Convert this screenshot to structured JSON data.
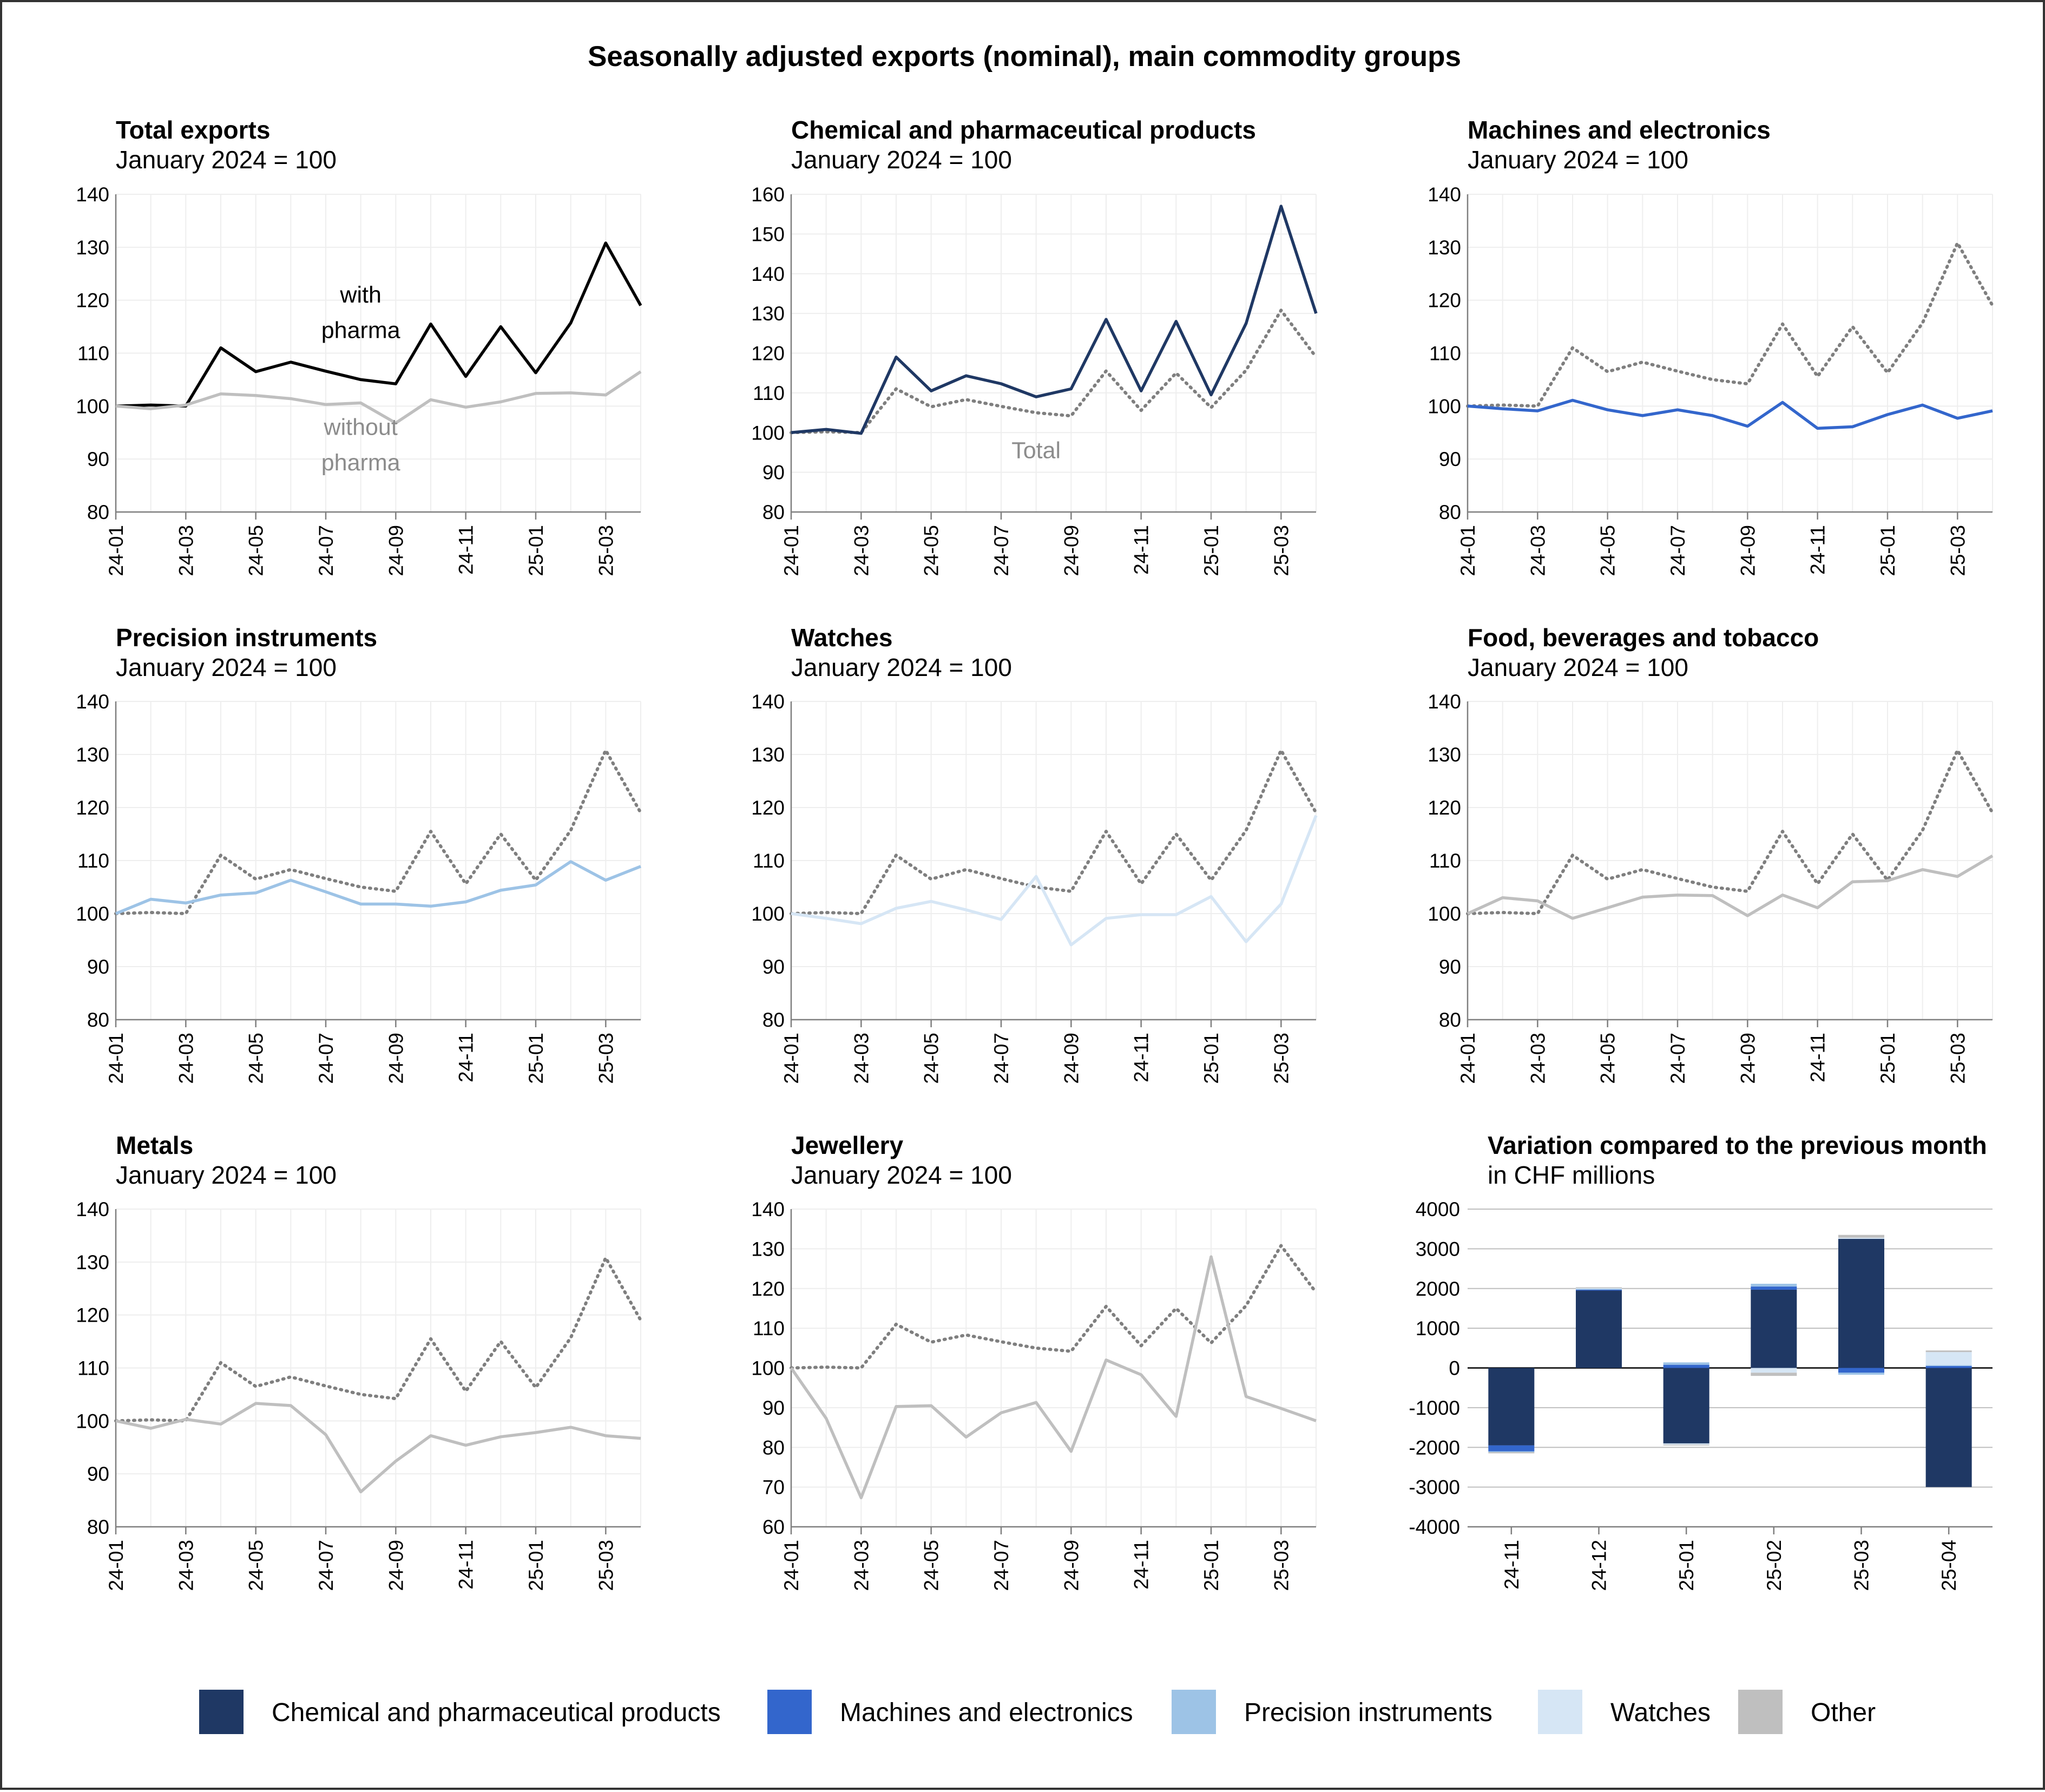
{
  "title": "Seasonally adjusted exports (nominal), main commodity groups",
  "colors": {
    "chem": "#1f3864",
    "mach": "#3366cc",
    "prec": "#9dc3e6",
    "watch": "#d6e6f5",
    "other": "#bfbfbf",
    "total_dotted": "#7f7f7f",
    "with_pharma": "#000000",
    "grid": "#eeeeee"
  },
  "legend": [
    {
      "label": "Chemical and pharmaceutical products",
      "color": "#1f3864"
    },
    {
      "label": "Machines and electronics",
      "color": "#3366cc"
    },
    {
      "label": "Precision instruments",
      "color": "#9dc3e6"
    },
    {
      "label": "Watches",
      "color": "#d6e6f5"
    },
    {
      "label": "Other",
      "color": "#bfbfbf"
    }
  ],
  "chart_data": [
    {
      "type": "line",
      "title": "Total exports",
      "subtitle": "January 2024 = 100",
      "x": [
        "24-01",
        "24-02",
        "24-03",
        "24-04",
        "24-05",
        "24-06",
        "24-07",
        "24-08",
        "24-09",
        "24-10",
        "24-11",
        "24-12",
        "25-01",
        "25-02",
        "25-03",
        "25-04"
      ],
      "xticks": [
        "24-01",
        "24-03",
        "24-05",
        "24-07",
        "24-09",
        "24-11",
        "25-01",
        "25-03"
      ],
      "ylim": [
        80,
        140
      ],
      "yticks": [
        80,
        90,
        100,
        110,
        120,
        130,
        140
      ],
      "series": [
        {
          "name": "with pharma",
          "color": "#000000",
          "style": "solid",
          "values": [
            100,
            100.2,
            100,
            111,
            106.5,
            108.3,
            106.6,
            105,
            104.2,
            115.5,
            105.6,
            115,
            106.3,
            115.7,
            130.8,
            119
          ]
        },
        {
          "name": "without pharma",
          "color": "#bfbfbf",
          "style": "solid",
          "values": [
            100,
            99.5,
            100.2,
            102.3,
            102,
            101.4,
            100.3,
            100.6,
            96.8,
            101.2,
            99.8,
            100.8,
            102.4,
            102.5,
            102.1,
            106.5
          ]
        }
      ],
      "annotations": [
        {
          "lines": [
            "with",
            "pharma"
          ],
          "color": "#000000",
          "x": "24-08",
          "y": [
            121,
            114.3
          ]
        },
        {
          "lines": [
            "without",
            "pharma"
          ],
          "color": "#8c8c8c",
          "x": "24-08",
          "y": [
            96,
            89.3
          ]
        }
      ]
    },
    {
      "type": "line",
      "title": "Chemical and pharmaceutical products",
      "subtitle": "January 2024 = 100",
      "x": [
        "24-01",
        "24-02",
        "24-03",
        "24-04",
        "24-05",
        "24-06",
        "24-07",
        "24-08",
        "24-09",
        "24-10",
        "24-11",
        "24-12",
        "25-01",
        "25-02",
        "25-03",
        "25-04"
      ],
      "xticks": [
        "24-01",
        "24-03",
        "24-05",
        "24-07",
        "24-09",
        "24-11",
        "25-01",
        "25-03"
      ],
      "ylim": [
        80,
        160
      ],
      "yticks": [
        80,
        90,
        100,
        110,
        120,
        130,
        140,
        150,
        160
      ],
      "series": [
        {
          "name": "Total",
          "color": "#7f7f7f",
          "style": "dotted",
          "values": [
            100,
            100.2,
            100,
            111,
            106.5,
            108.3,
            106.6,
            105,
            104.2,
            115.5,
            105.6,
            115,
            106.3,
            115.7,
            130.8,
            119
          ]
        },
        {
          "name": "Chemical and pharmaceutical products",
          "color": "#1f3864",
          "style": "solid",
          "values": [
            100,
            100.8,
            99.8,
            119,
            110.5,
            114.3,
            112.3,
            109,
            111,
            128.5,
            110.5,
            128,
            109.5,
            127.5,
            157,
            130
          ]
        }
      ],
      "annotations": [
        {
          "lines": [
            "Total"
          ],
          "color": "#8c8c8c",
          "x": "24-08",
          "y": [
            95.5
          ]
        }
      ]
    },
    {
      "type": "line",
      "title": "Machines and electronics",
      "subtitle": "January 2024 = 100",
      "x": [
        "24-01",
        "24-02",
        "24-03",
        "24-04",
        "24-05",
        "24-06",
        "24-07",
        "24-08",
        "24-09",
        "24-10",
        "24-11",
        "24-12",
        "25-01",
        "25-02",
        "25-03",
        "25-04"
      ],
      "xticks": [
        "24-01",
        "24-03",
        "24-05",
        "24-07",
        "24-09",
        "24-11",
        "25-01",
        "25-03"
      ],
      "ylim": [
        80,
        140
      ],
      "yticks": [
        80,
        90,
        100,
        110,
        120,
        130,
        140
      ],
      "series": [
        {
          "name": "Total",
          "color": "#7f7f7f",
          "style": "dotted",
          "values": [
            100,
            100.2,
            100,
            111,
            106.5,
            108.3,
            106.6,
            105,
            104.2,
            115.5,
            105.6,
            115,
            106.3,
            115.7,
            130.8,
            119
          ]
        },
        {
          "name": "Machines and electronics",
          "color": "#3366cc",
          "style": "solid",
          "values": [
            100,
            99.5,
            99.1,
            101.1,
            99.3,
            98.2,
            99.3,
            98.2,
            96.2,
            100.7,
            95.8,
            96.1,
            98.4,
            100.2,
            97.7,
            99.1
          ]
        }
      ]
    },
    {
      "type": "line",
      "title": "Precision instruments",
      "subtitle": "January 2024 = 100",
      "x": [
        "24-01",
        "24-02",
        "24-03",
        "24-04",
        "24-05",
        "24-06",
        "24-07",
        "24-08",
        "24-09",
        "24-10",
        "24-11",
        "24-12",
        "25-01",
        "25-02",
        "25-03",
        "25-04"
      ],
      "xticks": [
        "24-01",
        "24-03",
        "24-05",
        "24-07",
        "24-09",
        "24-11",
        "25-01",
        "25-03"
      ],
      "ylim": [
        80,
        140
      ],
      "yticks": [
        80,
        90,
        100,
        110,
        120,
        130,
        140
      ],
      "series": [
        {
          "name": "Total",
          "color": "#7f7f7f",
          "style": "dotted",
          "values": [
            100,
            100.2,
            100,
            111,
            106.5,
            108.3,
            106.6,
            105,
            104.2,
            115.5,
            105.6,
            115,
            106.3,
            115.7,
            130.8,
            119
          ]
        },
        {
          "name": "Precision instruments",
          "color": "#9dc3e6",
          "style": "solid",
          "values": [
            100,
            102.7,
            102,
            103.5,
            103.9,
            106.3,
            104.1,
            101.8,
            101.8,
            101.4,
            102.2,
            104.4,
            105.4,
            109.8,
            106.3,
            108.9
          ]
        }
      ]
    },
    {
      "type": "line",
      "title": "Watches",
      "subtitle": "January 2024 = 100",
      "x": [
        "24-01",
        "24-02",
        "24-03",
        "24-04",
        "24-05",
        "24-06",
        "24-07",
        "24-08",
        "24-09",
        "24-10",
        "24-11",
        "24-12",
        "25-01",
        "25-02",
        "25-03",
        "25-04"
      ],
      "xticks": [
        "24-01",
        "24-03",
        "24-05",
        "24-07",
        "24-09",
        "24-11",
        "25-01",
        "25-03"
      ],
      "ylim": [
        80,
        140
      ],
      "yticks": [
        80,
        90,
        100,
        110,
        120,
        130,
        140
      ],
      "series": [
        {
          "name": "Total",
          "color": "#7f7f7f",
          "style": "dotted",
          "values": [
            100,
            100.2,
            100,
            111,
            106.5,
            108.3,
            106.6,
            105,
            104.2,
            115.5,
            105.6,
            115,
            106.3,
            115.7,
            130.8,
            119
          ]
        },
        {
          "name": "Watches",
          "color": "#d6e6f5",
          "style": "solid",
          "values": [
            100,
            99.1,
            98.1,
            101,
            102.3,
            100.7,
            98.9,
            107,
            94.1,
            99.1,
            99.8,
            99.8,
            103.2,
            94.7,
            101.8,
            118.5
          ]
        }
      ]
    },
    {
      "type": "line",
      "title": "Food, beverages and tobacco",
      "subtitle": "January 2024 = 100",
      "x": [
        "24-01",
        "24-02",
        "24-03",
        "24-04",
        "24-05",
        "24-06",
        "24-07",
        "24-08",
        "24-09",
        "24-10",
        "24-11",
        "24-12",
        "25-01",
        "25-02",
        "25-03",
        "25-04"
      ],
      "xticks": [
        "24-01",
        "24-03",
        "24-05",
        "24-07",
        "24-09",
        "24-11",
        "25-01",
        "25-03"
      ],
      "ylim": [
        80,
        140
      ],
      "yticks": [
        80,
        90,
        100,
        110,
        120,
        130,
        140
      ],
      "series": [
        {
          "name": "Total",
          "color": "#7f7f7f",
          "style": "dotted",
          "values": [
            100,
            100.2,
            100,
            111,
            106.5,
            108.3,
            106.6,
            105,
            104.2,
            115.5,
            105.6,
            115,
            106.3,
            115.7,
            130.8,
            119
          ]
        },
        {
          "name": "Food, beverages and tobacco",
          "color": "#bfbfbf",
          "style": "solid",
          "values": [
            100,
            103,
            102.4,
            99.1,
            101.1,
            103.1,
            103.5,
            103.4,
            99.6,
            103.5,
            101.1,
            106,
            106.2,
            108.3,
            107,
            110.9
          ]
        }
      ]
    },
    {
      "type": "line",
      "title": "Metals",
      "subtitle": "January 2024 = 100",
      "x": [
        "24-01",
        "24-02",
        "24-03",
        "24-04",
        "24-05",
        "24-06",
        "24-07",
        "24-08",
        "24-09",
        "24-10",
        "24-11",
        "24-12",
        "25-01",
        "25-02",
        "25-03",
        "25-04"
      ],
      "xticks": [
        "24-01",
        "24-03",
        "24-05",
        "24-07",
        "24-09",
        "24-11",
        "25-01",
        "25-03"
      ],
      "ylim": [
        80,
        140
      ],
      "yticks": [
        80,
        90,
        100,
        110,
        120,
        130,
        140
      ],
      "series": [
        {
          "name": "Total",
          "color": "#7f7f7f",
          "style": "dotted",
          "values": [
            100,
            100.2,
            100,
            111,
            106.5,
            108.3,
            106.6,
            105,
            104.2,
            115.5,
            105.6,
            115,
            106.3,
            115.7,
            130.8,
            119
          ]
        },
        {
          "name": "Metals",
          "color": "#bfbfbf",
          "style": "solid",
          "values": [
            100,
            98.6,
            100.3,
            99.4,
            103.3,
            102.9,
            97.4,
            86.6,
            92.4,
            97.2,
            95.4,
            97,
            97.8,
            98.8,
            97.2,
            96.7
          ]
        }
      ]
    },
    {
      "type": "line",
      "title": "Jewellery",
      "subtitle": "January 2024 = 100",
      "x": [
        "24-01",
        "24-02",
        "24-03",
        "24-04",
        "24-05",
        "24-06",
        "24-07",
        "24-08",
        "24-09",
        "24-10",
        "24-11",
        "24-12",
        "25-01",
        "25-02",
        "25-03",
        "25-04"
      ],
      "xticks": [
        "24-01",
        "24-03",
        "24-05",
        "24-07",
        "24-09",
        "24-11",
        "25-01",
        "25-03"
      ],
      "ylim": [
        60,
        140
      ],
      "yticks": [
        60,
        70,
        80,
        90,
        100,
        110,
        120,
        130,
        140
      ],
      "series": [
        {
          "name": "Total",
          "color": "#7f7f7f",
          "style": "dotted",
          "values": [
            100,
            100.2,
            100,
            111,
            106.5,
            108.3,
            106.6,
            105,
            104.2,
            115.5,
            105.6,
            115,
            106.3,
            115.7,
            130.8,
            119
          ]
        },
        {
          "name": "Jewellery",
          "color": "#bfbfbf",
          "style": "solid",
          "values": [
            100,
            87.3,
            67.3,
            90.3,
            90.5,
            82.6,
            88.7,
            91.3,
            79,
            102,
            98.3,
            87.8,
            128,
            92.8,
            89.8,
            86.7
          ]
        }
      ]
    },
    {
      "type": "bar",
      "stacked": true,
      "title": "Variation compared to the previous month",
      "subtitle": "in CHF millions",
      "categories": [
        "24-11",
        "24-12",
        "25-01",
        "25-02",
        "25-03",
        "25-04"
      ],
      "ylim": [
        -4000,
        4000
      ],
      "yticks": [
        -4000,
        -3000,
        -2000,
        -1000,
        0,
        1000,
        2000,
        3000,
        4000
      ],
      "series": [
        {
          "name": "Chemical and pharmaceutical products",
          "color": "#1f3864",
          "values": [
            -1950,
            1950,
            -1900,
            1970,
            3250,
            -3000
          ]
        },
        {
          "name": "Machines and electronics",
          "color": "#3366cc",
          "values": [
            -150,
            20,
            80,
            80,
            -120,
            50
          ]
        },
        {
          "name": "Precision instruments",
          "color": "#9dc3e6",
          "values": [
            -20,
            30,
            60,
            70,
            -50,
            20
          ]
        },
        {
          "name": "Watches",
          "color": "#d6e6f5",
          "values": [
            0,
            10,
            -30,
            -120,
            30,
            330
          ]
        },
        {
          "name": "Other",
          "color": "#bfbfbf",
          "values": [
            -30,
            20,
            -20,
            -80,
            70,
            40
          ]
        }
      ]
    }
  ]
}
